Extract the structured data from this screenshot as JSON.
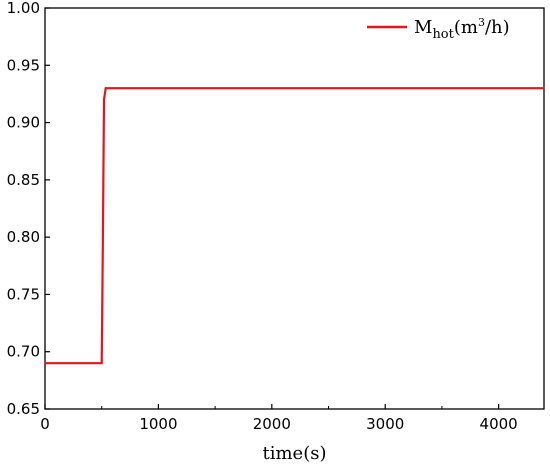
{
  "chart_data": {
    "type": "line",
    "xlabel": "time(s)",
    "ylabel": "",
    "xlim": [
      0,
      4400
    ],
    "ylim": [
      0.65,
      1.0
    ],
    "x_ticks": [
      0,
      1000,
      2000,
      3000,
      4000
    ],
    "x_tick_labels": [
      "0",
      "1000",
      "2000",
      "3000",
      "4000"
    ],
    "y_ticks": [
      0.65,
      0.7,
      0.75,
      0.8,
      0.85,
      0.9,
      0.95,
      1.0
    ],
    "y_tick_labels": [
      "0.65",
      "0.70",
      "0.75",
      "0.80",
      "0.85",
      "0.90",
      "0.95",
      "1.00"
    ],
    "grid": false,
    "legend_position": "top-right",
    "legend": {
      "main": "M",
      "sub": "hot",
      "unit_prefix": "(m",
      "unit_sup": "3",
      "unit_suffix": "/h)"
    },
    "series": [
      {
        "name": "Mhot(m3/h)",
        "color": "#e8141b",
        "x": [
          0,
          500,
          510,
          520,
          535,
          4400
        ],
        "y": [
          0.69,
          0.69,
          0.79,
          0.92,
          0.93,
          0.93
        ]
      }
    ]
  }
}
